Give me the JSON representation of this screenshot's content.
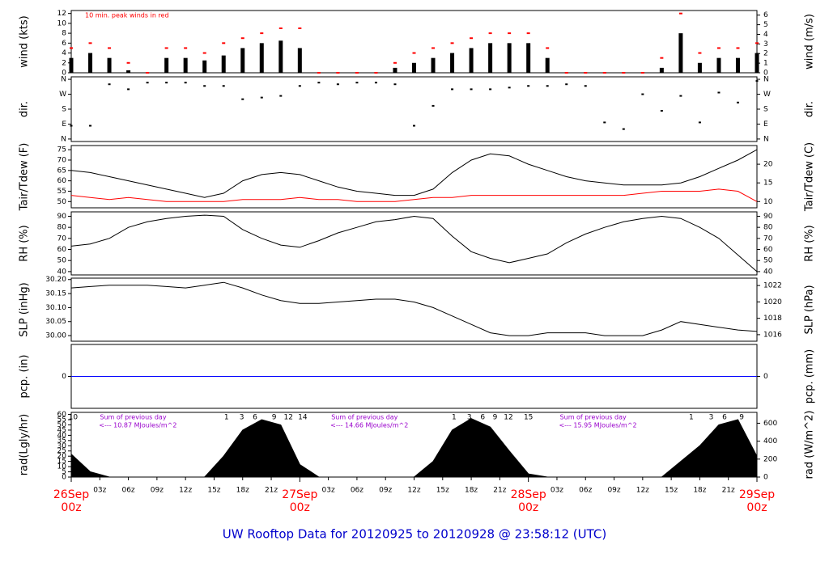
{
  "title": "UW Rooftop Data for 20120925  to  20120928 @ 23:58:12  (UTC)",
  "chart_data": [
    {
      "type": "bar",
      "ylabel": "wind (kts)",
      "y2label": "wind (m/s)",
      "annotation": "10 min. peak winds in red",
      "xlim": [
        0,
        72
      ],
      "ylim": [
        0,
        12.6
      ],
      "yticks": [
        0,
        2,
        4,
        6,
        8,
        10,
        12
      ],
      "y2lim": [
        0,
        6.48
      ],
      "y2ticks": [
        0,
        1,
        2,
        3,
        4,
        5,
        6
      ],
      "x": [
        0,
        2,
        4,
        6,
        8,
        10,
        12,
        14,
        16,
        18,
        20,
        22,
        24,
        26,
        28,
        30,
        32,
        34,
        36,
        38,
        40,
        42,
        44,
        46,
        48,
        50,
        52,
        54,
        56,
        58,
        60,
        62,
        64,
        66,
        68,
        70,
        72
      ],
      "series": [
        {
          "color": "#000000",
          "mark": "stick",
          "values": [
            3,
            4,
            3,
            0.5,
            0,
            3,
            3,
            2.5,
            3.5,
            5,
            6,
            6.5,
            5,
            0,
            0,
            0,
            0,
            1,
            2,
            3,
            4,
            5,
            6,
            6,
            6,
            3,
            0,
            0,
            0,
            0,
            0,
            1,
            8,
            2,
            3,
            3,
            4
          ]
        },
        {
          "color": "#ff0000",
          "mark": "dot",
          "values": [
            5,
            6,
            5,
            2,
            0,
            5,
            5,
            4,
            6,
            7,
            8,
            9,
            9,
            0,
            0,
            0,
            0,
            2,
            4,
            5,
            6,
            7,
            8,
            8,
            8,
            5,
            0,
            0,
            0,
            0,
            0,
            3,
            12,
            4,
            5,
            5,
            6
          ]
        }
      ]
    },
    {
      "type": "scatter",
      "ylabel": "dir.",
      "y2label": "dir.",
      "xlim": [
        0,
        72
      ],
      "ylim": [
        -15,
        375
      ],
      "yticks": [
        {
          "value": 0,
          "label": "N"
        },
        {
          "value": 90,
          "label": "E"
        },
        {
          "value": 180,
          "label": "S"
        },
        {
          "value": 270,
          "label": "W"
        },
        {
          "value": 360,
          "label": "N"
        }
      ],
      "y2lim": [
        -15,
        375
      ],
      "y2ticks": [
        {
          "value": 0,
          "label": "N"
        },
        {
          "value": 90,
          "label": "E"
        },
        {
          "value": 180,
          "label": "S"
        },
        {
          "value": 270,
          "label": "W"
        },
        {
          "value": 360,
          "label": "N"
        }
      ],
      "x": [
        0,
        2,
        4,
        6,
        8,
        10,
        12,
        14,
        16,
        18,
        20,
        22,
        24,
        26,
        28,
        30,
        32,
        34,
        36,
        38,
        40,
        42,
        44,
        46,
        48,
        50,
        52,
        54,
        56,
        58,
        60,
        62,
        64,
        66,
        68,
        70,
        72
      ],
      "series": [
        {
          "color": "#000000",
          "values": [
            80,
            80,
            330,
            300,
            340,
            340,
            340,
            320,
            320,
            240,
            250,
            260,
            320,
            340,
            330,
            340,
            340,
            330,
            80,
            200,
            300,
            300,
            300,
            310,
            320,
            320,
            330,
            320,
            100,
            60,
            270,
            170,
            260,
            100,
            280,
            220,
            350
          ]
        }
      ]
    },
    {
      "type": "line",
      "ylabel": "Tair/Tdew (F)",
      "y2label": "Tair/Tdew (C)",
      "xlim": [
        0,
        72
      ],
      "ylim": [
        47,
        77
      ],
      "yticks": [
        50,
        55,
        60,
        65,
        70,
        75
      ],
      "y2lim": [
        8.33,
        25
      ],
      "y2ticks": [
        10,
        15,
        20
      ],
      "x": [
        0,
        2,
        4,
        6,
        8,
        10,
        12,
        14,
        16,
        18,
        20,
        22,
        24,
        26,
        28,
        30,
        32,
        34,
        36,
        38,
        40,
        42,
        44,
        46,
        48,
        50,
        52,
        54,
        56,
        58,
        60,
        62,
        64,
        66,
        68,
        70,
        72
      ],
      "series": [
        {
          "color": "#000000",
          "values": [
            65,
            64,
            62,
            60,
            58,
            56,
            54,
            52,
            54,
            60,
            63,
            64,
            63,
            60,
            57,
            55,
            54,
            53,
            53,
            56,
            64,
            70,
            73,
            72,
            68,
            65,
            62,
            60,
            59,
            58,
            58,
            58,
            59,
            62,
            66,
            70,
            75
          ]
        },
        {
          "color": "#ff0000",
          "values": [
            53,
            52,
            51,
            52,
            51,
            50,
            50,
            50,
            50,
            51,
            51,
            51,
            52,
            51,
            51,
            50,
            50,
            50,
            51,
            52,
            52,
            53,
            53,
            53,
            53,
            53,
            53,
            53,
            53,
            53,
            54,
            55,
            55,
            55,
            56,
            55,
            50
          ]
        }
      ]
    },
    {
      "type": "line",
      "ylabel": "RH (%)",
      "y2label": "RH (%)",
      "xlim": [
        0,
        72
      ],
      "ylim": [
        37,
        94
      ],
      "yticks": [
        40,
        50,
        60,
        70,
        80,
        90
      ],
      "y2lim": [
        37,
        94
      ],
      "y2ticks": [
        40,
        50,
        60,
        70,
        80,
        90
      ],
      "x": [
        0,
        2,
        4,
        6,
        8,
        10,
        12,
        14,
        16,
        18,
        20,
        22,
        24,
        26,
        28,
        30,
        32,
        34,
        36,
        38,
        40,
        42,
        44,
        46,
        48,
        50,
        52,
        54,
        56,
        58,
        60,
        62,
        64,
        66,
        68,
        70,
        72
      ],
      "series": [
        {
          "color": "#000000",
          "values": [
            63,
            65,
            70,
            80,
            85,
            88,
            90,
            91,
            90,
            78,
            70,
            64,
            62,
            68,
            75,
            80,
            85,
            87,
            90,
            88,
            72,
            58,
            52,
            48,
            52,
            56,
            66,
            74,
            80,
            85,
            88,
            90,
            88,
            80,
            70,
            55,
            40
          ]
        }
      ]
    },
    {
      "type": "line",
      "ylabel": "SLP (inHg)",
      "y2label": "SLP (hPa)",
      "xlim": [
        0,
        72
      ],
      "ylim": [
        29.98,
        30.205
      ],
      "yticks": [
        {
          "value": 30.0,
          "label": "30.00"
        },
        {
          "value": 30.05,
          "label": "30.05"
        },
        {
          "value": 30.1,
          "label": "30.10"
        },
        {
          "value": 30.15,
          "label": "30.15"
        },
        {
          "value": 30.2,
          "label": "30.20"
        }
      ],
      "y2lim": [
        1015.2,
        1022.9
      ],
      "y2ticks": [
        1016,
        1018,
        1020,
        1022
      ],
      "x": [
        0,
        2,
        4,
        6,
        8,
        10,
        12,
        14,
        16,
        18,
        20,
        22,
        24,
        26,
        28,
        30,
        32,
        34,
        36,
        38,
        40,
        42,
        44,
        46,
        48,
        50,
        52,
        54,
        56,
        58,
        60,
        62,
        64,
        66,
        68,
        70,
        72
      ],
      "series": [
        {
          "color": "#000000",
          "values": [
            30.17,
            30.175,
            30.18,
            30.18,
            30.18,
            30.175,
            30.17,
            30.18,
            30.19,
            30.17,
            30.145,
            30.125,
            30.115,
            30.115,
            30.12,
            30.125,
            30.13,
            30.13,
            30.12,
            30.1,
            30.07,
            30.04,
            30.01,
            30.0,
            30.0,
            30.01,
            30.01,
            30.01,
            30.0,
            30.0,
            30.0,
            30.02,
            30.05,
            30.04,
            30.03,
            30.02,
            30.015
          ]
        }
      ]
    },
    {
      "type": "line",
      "ylabel": "pcp. (in)",
      "y2label": "pcp. (mm)",
      "xlim": [
        0,
        72
      ],
      "ylim": [
        -1,
        1
      ],
      "yticks": [
        0
      ],
      "y2lim": [
        -25.4,
        25.4
      ],
      "y2ticks": [
        0
      ],
      "x": [
        0,
        72
      ],
      "series": [
        {
          "color": "#0000ff",
          "values": [
            0,
            0
          ]
        }
      ]
    },
    {
      "type": "area",
      "ylabel": "rad(Lgly/hr)",
      "y2label": "rad (W/m^2)",
      "xlim": [
        0,
        72
      ],
      "ylim": [
        0,
        62
      ],
      "yticks": [
        0,
        5,
        10,
        15,
        20,
        25,
        30,
        35,
        40,
        45,
        50,
        55,
        60
      ],
      "y2lim": [
        0,
        721
      ],
      "y2ticks": [
        0,
        200,
        400,
        600
      ],
      "xticks": [
        {
          "value": 3,
          "label": "03z"
        },
        {
          "value": 6,
          "label": "06z"
        },
        {
          "value": 9,
          "label": "09z"
        },
        {
          "value": 12,
          "label": "12z"
        },
        {
          "value": 15,
          "label": "15z"
        },
        {
          "value": 18,
          "label": "18z"
        },
        {
          "value": 21,
          "label": "21z"
        },
        {
          "value": 27,
          "label": "03z"
        },
        {
          "value": 30,
          "label": "06z"
        },
        {
          "value": 33,
          "label": "09z"
        },
        {
          "value": 36,
          "label": "12z"
        },
        {
          "value": 39,
          "label": "15z"
        },
        {
          "value": 42,
          "label": "18z"
        },
        {
          "value": 45,
          "label": "21z"
        },
        {
          "value": 51,
          "label": "03z"
        },
        {
          "value": 54,
          "label": "06z"
        },
        {
          "value": 57,
          "label": "09z"
        },
        {
          "value": 60,
          "label": "12z"
        },
        {
          "value": 63,
          "label": "15z"
        },
        {
          "value": 66,
          "label": "18z"
        },
        {
          "value": 69,
          "label": "21z"
        }
      ],
      "day_ticks": [
        {
          "value": 0,
          "label": "26Sep",
          "time": "00z"
        },
        {
          "value": 24,
          "label": "27Sep",
          "time": "00z"
        },
        {
          "value": 48,
          "label": "28Sep",
          "time": "00z"
        },
        {
          "value": 72,
          "label": "29Sep",
          "time": "00z"
        }
      ],
      "hour_labels": [
        {
          "x": 0.2,
          "text": "10"
        },
        {
          "x": 16.3,
          "text": "1"
        },
        {
          "x": 17.9,
          "text": "3"
        },
        {
          "x": 19.3,
          "text": "6"
        },
        {
          "x": 21.3,
          "text": "9"
        },
        {
          "x": 22.8,
          "text": "12"
        },
        {
          "x": 24.3,
          "text": "14"
        },
        {
          "x": 40.2,
          "text": "1"
        },
        {
          "x": 41.8,
          "text": "3"
        },
        {
          "x": 43.2,
          "text": "6"
        },
        {
          "x": 44.5,
          "text": "9"
        },
        {
          "x": 45.9,
          "text": "12"
        },
        {
          "x": 48,
          "text": "15"
        },
        {
          "x": 65.1,
          "text": "1"
        },
        {
          "x": 67.2,
          "text": "3"
        },
        {
          "x": 68.6,
          "text": "6"
        },
        {
          "x": 70.4,
          "text": "9"
        }
      ],
      "day_sums": [
        {
          "x": 6.5,
          "title": "Sum of previous day",
          "text": "<--- 10.87 MJoules/m^2"
        },
        {
          "x": 30.8,
          "title": "Sum of previous day",
          "text": "<--- 14.66 MJoules/m^2"
        },
        {
          "x": 54.8,
          "title": "Sum of previous day",
          "text": "<--- 15.95 MJoules/m^2"
        }
      ],
      "x": [
        0,
        2,
        4,
        6,
        8,
        10,
        12,
        14,
        16,
        18,
        20,
        22,
        24,
        26,
        28,
        30,
        32,
        34,
        36,
        38,
        40,
        42,
        44,
        46,
        48,
        50,
        52,
        54,
        56,
        58,
        60,
        62,
        64,
        66,
        68,
        70,
        72
      ],
      "series": [
        {
          "color": "#000000",
          "values": [
            22,
            5,
            0,
            0,
            0,
            0,
            0,
            0,
            20,
            45,
            55,
            50,
            12,
            0,
            0,
            0,
            0,
            0,
            0,
            15,
            45,
            56,
            48,
            25,
            3,
            0,
            0,
            0,
            0,
            0,
            0,
            0,
            15,
            30,
            50,
            55,
            20
          ]
        }
      ]
    }
  ]
}
